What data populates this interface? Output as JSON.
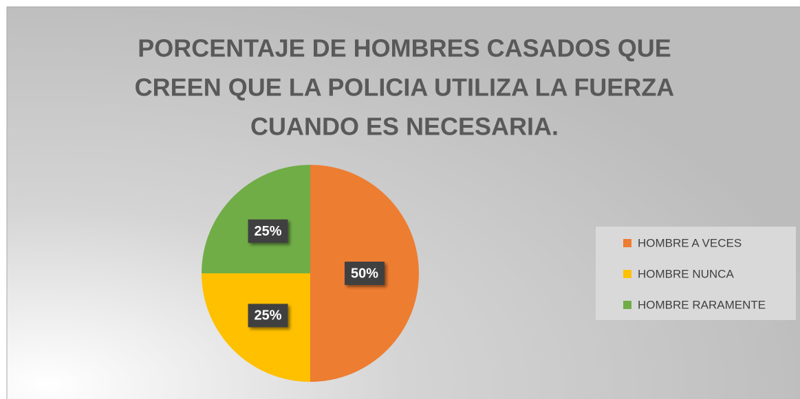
{
  "chart_data": {
    "type": "pie",
    "title": [
      "PORCENTAJE DE HOMBRES CASADOS QUE",
      "CREEN QUE LA POLICIA UTILIZA LA FUERZA",
      "CUANDO ES NECESARIA."
    ],
    "categories": [
      "HOMBRE A VECES",
      "HOMBRE NUNCA",
      "HOMBRE RARAMENTE"
    ],
    "values": [
      50,
      25,
      25
    ],
    "value_labels": [
      "50%",
      "25%",
      "25%"
    ],
    "colors": [
      "#ED7D31",
      "#FFC000",
      "#70AD47"
    ],
    "legend": "right"
  }
}
